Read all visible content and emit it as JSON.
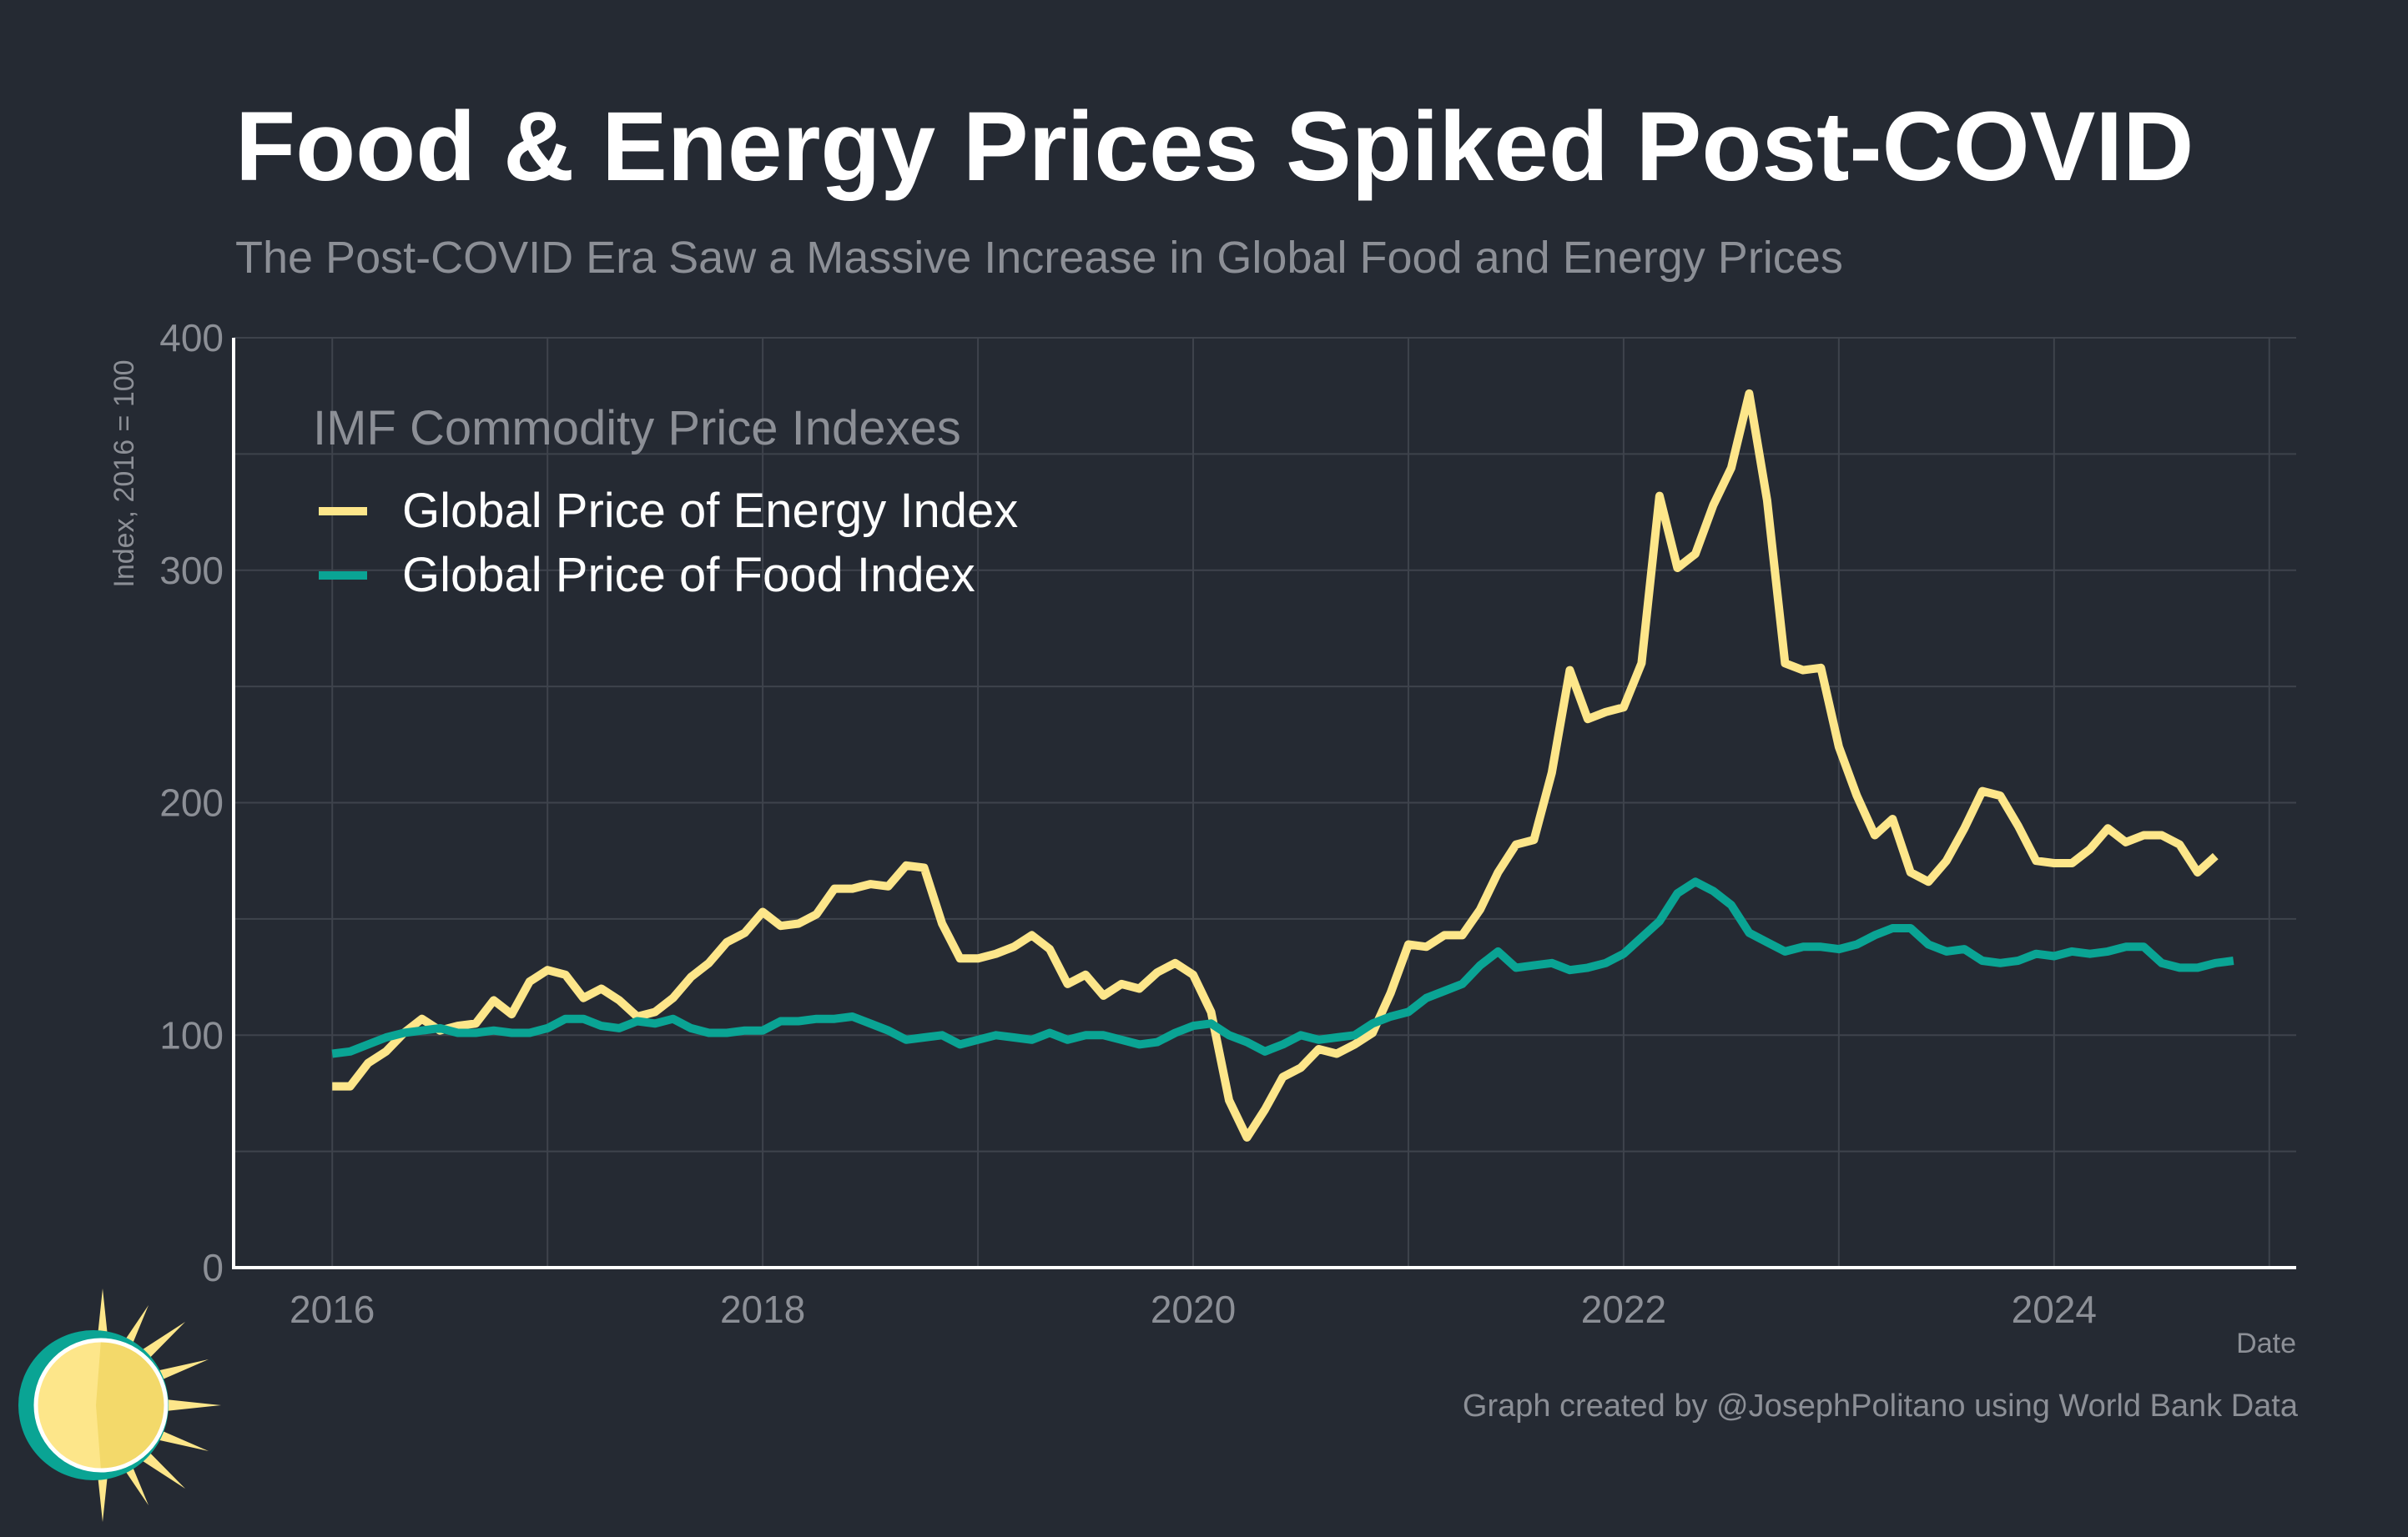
{
  "title": "Food & Energy Prices Spiked Post-COVID",
  "subtitle": "The Post-COVID Era Saw a Massive Increase in Global Food and Energy Prices",
  "credit": "Graph created by @JosephPolitano using World Bank Data",
  "chart_data": {
    "type": "line",
    "title": "Food & Energy Prices Spiked Post-COVID",
    "subtitle": "The Post-COVID Era Saw a Massive Increase in Global Food and Energy Prices",
    "xlabel": "Date",
    "ylabel": "Index, 2016 = 100",
    "ylim": [
      0,
      400
    ],
    "xlim": [
      "2015-07",
      "2025-02"
    ],
    "y_ticks": [
      0,
      100,
      200,
      300,
      400
    ],
    "x_ticks": [
      "2016",
      "2018",
      "2020",
      "2022",
      "2024"
    ],
    "grid": true,
    "legend": {
      "title": "IMF Commodity Price Indexes",
      "position": "top-left"
    },
    "series": [
      {
        "name": "Global Price of Energy Index",
        "color": "#fde68a",
        "points": [
          [
            "2016-01",
            78
          ],
          [
            "2016-02",
            78
          ],
          [
            "2016-03",
            88
          ],
          [
            "2016-04",
            93
          ],
          [
            "2016-05",
            101
          ],
          [
            "2016-06",
            107
          ],
          [
            "2016-07",
            102
          ],
          [
            "2016-08",
            104
          ],
          [
            "2016-09",
            105
          ],
          [
            "2016-10",
            115
          ],
          [
            "2016-11",
            109
          ],
          [
            "2016-12",
            123
          ],
          [
            "2017-01",
            128
          ],
          [
            "2017-02",
            126
          ],
          [
            "2017-03",
            116
          ],
          [
            "2017-04",
            120
          ],
          [
            "2017-05",
            115
          ],
          [
            "2017-06",
            108
          ],
          [
            "2017-07",
            110
          ],
          [
            "2017-08",
            116
          ],
          [
            "2017-09",
            125
          ],
          [
            "2017-10",
            131
          ],
          [
            "2017-11",
            140
          ],
          [
            "2017-12",
            144
          ],
          [
            "2018-01",
            153
          ],
          [
            "2018-02",
            147
          ],
          [
            "2018-03",
            148
          ],
          [
            "2018-04",
            152
          ],
          [
            "2018-05",
            163
          ],
          [
            "2018-06",
            163
          ],
          [
            "2018-07",
            165
          ],
          [
            "2018-08",
            164
          ],
          [
            "2018-09",
            173
          ],
          [
            "2018-10",
            172
          ],
          [
            "2018-11",
            148
          ],
          [
            "2018-12",
            133
          ],
          [
            "2019-01",
            133
          ],
          [
            "2019-02",
            135
          ],
          [
            "2019-03",
            138
          ],
          [
            "2019-04",
            143
          ],
          [
            "2019-05",
            137
          ],
          [
            "2019-06",
            122
          ],
          [
            "2019-07",
            126
          ],
          [
            "2019-08",
            117
          ],
          [
            "2019-09",
            122
          ],
          [
            "2019-10",
            120
          ],
          [
            "2019-11",
            127
          ],
          [
            "2019-12",
            131
          ],
          [
            "2020-01",
            126
          ],
          [
            "2020-02",
            110
          ],
          [
            "2020-03",
            72
          ],
          [
            "2020-04",
            56
          ],
          [
            "2020-05",
            68
          ],
          [
            "2020-06",
            82
          ],
          [
            "2020-07",
            86
          ],
          [
            "2020-08",
            94
          ],
          [
            "2020-09",
            92
          ],
          [
            "2020-10",
            96
          ],
          [
            "2020-11",
            101
          ],
          [
            "2020-12",
            118
          ],
          [
            "2021-01",
            139
          ],
          [
            "2021-02",
            138
          ],
          [
            "2021-03",
            143
          ],
          [
            "2021-04",
            143
          ],
          [
            "2021-05",
            154
          ],
          [
            "2021-06",
            170
          ],
          [
            "2021-07",
            182
          ],
          [
            "2021-08",
            184
          ],
          [
            "2021-09",
            213
          ],
          [
            "2021-10",
            257
          ],
          [
            "2021-11",
            236
          ],
          [
            "2021-12",
            239
          ],
          [
            "2022-01",
            241
          ],
          [
            "2022-02",
            260
          ],
          [
            "2022-03",
            332
          ],
          [
            "2022-04",
            301
          ],
          [
            "2022-05",
            307
          ],
          [
            "2022-06",
            328
          ],
          [
            "2022-07",
            344
          ],
          [
            "2022-08",
            376
          ],
          [
            "2022-09",
            330
          ],
          [
            "2022-10",
            260
          ],
          [
            "2022-11",
            257
          ],
          [
            "2022-12",
            258
          ],
          [
            "2023-01",
            224
          ],
          [
            "2023-02",
            203
          ],
          [
            "2023-03",
            186
          ],
          [
            "2023-04",
            193
          ],
          [
            "2023-05",
            170
          ],
          [
            "2023-06",
            166
          ],
          [
            "2023-07",
            175
          ],
          [
            "2023-08",
            189
          ],
          [
            "2023-09",
            205
          ],
          [
            "2023-10",
            203
          ],
          [
            "2023-11",
            190
          ],
          [
            "2023-12",
            175
          ],
          [
            "2024-01",
            174
          ],
          [
            "2024-02",
            174
          ],
          [
            "2024-03",
            180
          ],
          [
            "2024-04",
            189
          ],
          [
            "2024-05",
            183
          ],
          [
            "2024-06",
            186
          ],
          [
            "2024-07",
            186
          ],
          [
            "2024-08",
            182
          ],
          [
            "2024-09",
            170
          ],
          [
            "2024-10",
            177
          ]
        ]
      },
      {
        "name": "Global Price of Food Index",
        "color": "#0aa494",
        "points": [
          [
            "2016-01",
            92
          ],
          [
            "2016-02",
            93
          ],
          [
            "2016-03",
            96
          ],
          [
            "2016-04",
            99
          ],
          [
            "2016-05",
            101
          ],
          [
            "2016-06",
            102
          ],
          [
            "2016-07",
            103
          ],
          [
            "2016-08",
            101
          ],
          [
            "2016-09",
            101
          ],
          [
            "2016-10",
            102
          ],
          [
            "2016-11",
            101
          ],
          [
            "2016-12",
            101
          ],
          [
            "2017-01",
            103
          ],
          [
            "2017-02",
            107
          ],
          [
            "2017-03",
            107
          ],
          [
            "2017-04",
            104
          ],
          [
            "2017-05",
            103
          ],
          [
            "2017-06",
            106
          ],
          [
            "2017-07",
            105
          ],
          [
            "2017-08",
            107
          ],
          [
            "2017-09",
            103
          ],
          [
            "2017-10",
            101
          ],
          [
            "2017-11",
            101
          ],
          [
            "2017-12",
            102
          ],
          [
            "2018-01",
            102
          ],
          [
            "2018-02",
            106
          ],
          [
            "2018-03",
            106
          ],
          [
            "2018-04",
            107
          ],
          [
            "2018-05",
            107
          ],
          [
            "2018-06",
            108
          ],
          [
            "2018-07",
            105
          ],
          [
            "2018-08",
            102
          ],
          [
            "2018-09",
            98
          ],
          [
            "2018-10",
            99
          ],
          [
            "2018-11",
            100
          ],
          [
            "2018-12",
            96
          ],
          [
            "2019-01",
            98
          ],
          [
            "2019-02",
            100
          ],
          [
            "2019-03",
            99
          ],
          [
            "2019-04",
            98
          ],
          [
            "2019-05",
            101
          ],
          [
            "2019-06",
            98
          ],
          [
            "2019-07",
            100
          ],
          [
            "2019-08",
            100
          ],
          [
            "2019-09",
            98
          ],
          [
            "2019-10",
            96
          ],
          [
            "2019-11",
            97
          ],
          [
            "2019-12",
            101
          ],
          [
            "2020-01",
            104
          ],
          [
            "2020-02",
            105
          ],
          [
            "2020-03",
            100
          ],
          [
            "2020-04",
            97
          ],
          [
            "2020-05",
            93
          ],
          [
            "2020-06",
            96
          ],
          [
            "2020-07",
            100
          ],
          [
            "2020-08",
            98
          ],
          [
            "2020-09",
            99
          ],
          [
            "2020-10",
            100
          ],
          [
            "2020-11",
            105
          ],
          [
            "2020-12",
            108
          ],
          [
            "2021-01",
            110
          ],
          [
            "2021-02",
            116
          ],
          [
            "2021-03",
            119
          ],
          [
            "2021-04",
            122
          ],
          [
            "2021-05",
            130
          ],
          [
            "2021-06",
            136
          ],
          [
            "2021-07",
            129
          ],
          [
            "2021-08",
            130
          ],
          [
            "2021-09",
            131
          ],
          [
            "2021-10",
            128
          ],
          [
            "2021-11",
            129
          ],
          [
            "2021-12",
            131
          ],
          [
            "2022-01",
            135
          ],
          [
            "2022-02",
            142
          ],
          [
            "2022-03",
            149
          ],
          [
            "2022-04",
            161
          ],
          [
            "2022-05",
            166
          ],
          [
            "2022-06",
            162
          ],
          [
            "2022-07",
            156
          ],
          [
            "2022-08",
            144
          ],
          [
            "2022-09",
            140
          ],
          [
            "2022-10",
            136
          ],
          [
            "2022-11",
            138
          ],
          [
            "2022-12",
            138
          ],
          [
            "2023-01",
            137
          ],
          [
            "2023-02",
            139
          ],
          [
            "2023-03",
            143
          ],
          [
            "2023-04",
            146
          ],
          [
            "2023-05",
            146
          ],
          [
            "2023-06",
            139
          ],
          [
            "2023-07",
            136
          ],
          [
            "2023-08",
            137
          ],
          [
            "2023-09",
            132
          ],
          [
            "2023-10",
            131
          ],
          [
            "2023-11",
            132
          ],
          [
            "2023-12",
            135
          ],
          [
            "2024-01",
            134
          ],
          [
            "2024-02",
            136
          ],
          [
            "2024-03",
            135
          ],
          [
            "2024-04",
            136
          ],
          [
            "2024-05",
            138
          ],
          [
            "2024-06",
            138
          ],
          [
            "2024-07",
            131
          ],
          [
            "2024-08",
            129
          ],
          [
            "2024-09",
            129
          ],
          [
            "2024-10",
            131
          ],
          [
            "2024-11",
            132
          ]
        ]
      }
    ]
  }
}
